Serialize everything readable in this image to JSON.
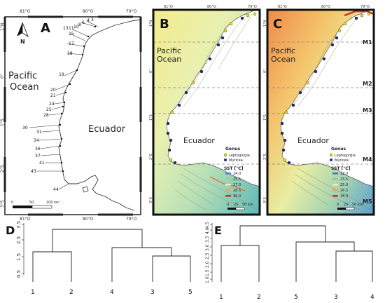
{
  "panels": {
    "A": {
      "letter": "A",
      "north": "N",
      "lon_labels": [
        "81°O",
        "80°O",
        "79°O"
      ],
      "lat_labels": [
        "1°N",
        "0°",
        "1°S",
        "2°S",
        "3°S"
      ],
      "ocean_label": [
        "Pacific",
        "Ocean"
      ],
      "country_label": "Ecuador",
      "scale": {
        "ticks": [
          "0",
          "50",
          "100 km"
        ]
      },
      "sites": [
        "3",
        "4",
        "6",
        "8",
        "10",
        "11",
        "13",
        "15",
        "17",
        "18",
        "19",
        "20",
        "21",
        "24",
        "25",
        "28",
        "30",
        "31",
        "34",
        "36",
        "37",
        "41",
        "43",
        "44"
      ]
    },
    "B": {
      "letter": "B",
      "lon_labels": [
        "81°O",
        "80°O",
        "79°O"
      ],
      "lat_labels": [
        "1°N",
        "0°",
        "1°S",
        "2°S",
        "3°S"
      ],
      "ocean_label": [
        "Pacific",
        "Ocean"
      ],
      "country_label": "Ecuador",
      "legend": {
        "genus_title": "Genus",
        "genus": [
          {
            "name": "Leptogorgia",
            "color": "#f2e61a"
          },
          {
            "name": "Muricea",
            "color": "#1f2a8a"
          }
        ],
        "sst_title": "SST [°C]",
        "sst": [
          {
            "label": "24.0",
            "color": "#4a7fc4"
          },
          {
            "label": "25.5",
            "color": "#9ed0a6"
          },
          {
            "label": "27.0",
            "color": "#e8ecb4"
          },
          {
            "label": "28.5",
            "color": "#f0a35a"
          },
          {
            "label": "30.0",
            "color": "#c8302a"
          }
        ]
      },
      "scale": {
        "ticks": [
          "0",
          "25",
          "50 km"
        ]
      }
    },
    "C": {
      "letter": "C",
      "lon_labels": [
        "81°O",
        "80°O",
        "79°O"
      ],
      "lat_labels": [
        "1°N",
        "0°",
        "1°S",
        "2°S",
        "3°S"
      ],
      "ocean_label": [
        "Pacific",
        "Ocean"
      ],
      "country_label": "Ecuador",
      "zones": [
        "M1",
        "M2",
        "M3",
        "M4",
        "M5"
      ],
      "legend": {
        "genus_title": "Genus",
        "genus": [
          {
            "name": "Leptogorgia",
            "color": "#f2e61a"
          },
          {
            "name": "Muricea",
            "color": "#1f2a8a"
          }
        ],
        "sst_title": "SST [°C]",
        "sst": [
          {
            "label": "22.0",
            "color": "#3f6fb8"
          },
          {
            "label": "23.5",
            "color": "#8cc6b0"
          },
          {
            "label": "25.0",
            "color": "#eef0b0"
          },
          {
            "label": "26.5",
            "color": "#f0a35a"
          },
          {
            "label": "28.0",
            "color": "#c8302a"
          }
        ]
      },
      "scale": {
        "ticks": [
          "0",
          "25",
          "50 km"
        ]
      }
    },
    "D": {
      "letter": "D",
      "yticks": [
        "0.5",
        "1.5",
        "2.5",
        "3.5"
      ],
      "leaves": [
        "1",
        "2",
        "4",
        "3",
        "5"
      ]
    },
    "E": {
      "letter": "E",
      "yticks": [
        "1.0",
        "1.5",
        "2.0",
        "2.5",
        "3.0",
        "3.5",
        "4.0",
        "4.5"
      ],
      "leaves": [
        "1",
        "2",
        "5",
        "3",
        "4"
      ]
    }
  }
}
